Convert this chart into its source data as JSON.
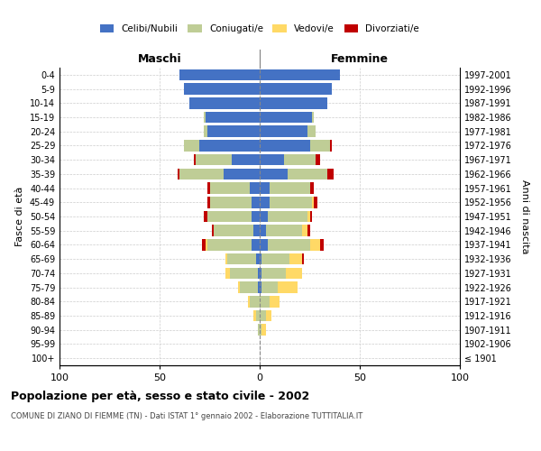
{
  "age_groups": [
    "100+",
    "95-99",
    "90-94",
    "85-89",
    "80-84",
    "75-79",
    "70-74",
    "65-69",
    "60-64",
    "55-59",
    "50-54",
    "45-49",
    "40-44",
    "35-39",
    "30-34",
    "25-29",
    "20-24",
    "15-19",
    "10-14",
    "5-9",
    "0-4"
  ],
  "birth_years": [
    "≤ 1901",
    "1902-1906",
    "1907-1911",
    "1912-1916",
    "1917-1921",
    "1922-1926",
    "1927-1931",
    "1932-1936",
    "1937-1941",
    "1942-1946",
    "1947-1951",
    "1952-1956",
    "1957-1961",
    "1962-1966",
    "1967-1971",
    "1972-1976",
    "1977-1981",
    "1982-1986",
    "1987-1991",
    "1992-1996",
    "1997-2001"
  ],
  "male": {
    "celibi": [
      0,
      0,
      0,
      0,
      0,
      1,
      1,
      2,
      4,
      3,
      4,
      4,
      5,
      18,
      14,
      30,
      26,
      27,
      35,
      38,
      40
    ],
    "coniugati": [
      0,
      0,
      1,
      2,
      5,
      9,
      14,
      14,
      22,
      20,
      22,
      21,
      20,
      22,
      18,
      8,
      2,
      1,
      0,
      0,
      0
    ],
    "vedovi": [
      0,
      0,
      0,
      1,
      1,
      1,
      2,
      1,
      1,
      0,
      0,
      0,
      0,
      0,
      0,
      0,
      0,
      0,
      0,
      0,
      0
    ],
    "divorziati": [
      0,
      0,
      0,
      0,
      0,
      0,
      0,
      0,
      2,
      1,
      2,
      1,
      1,
      1,
      1,
      0,
      0,
      0,
      0,
      0,
      0
    ]
  },
  "female": {
    "nubili": [
      0,
      0,
      0,
      0,
      0,
      1,
      1,
      1,
      4,
      3,
      4,
      5,
      5,
      14,
      12,
      25,
      24,
      26,
      34,
      36,
      40
    ],
    "coniugate": [
      0,
      0,
      1,
      3,
      5,
      8,
      12,
      14,
      21,
      18,
      20,
      21,
      20,
      20,
      16,
      10,
      4,
      1,
      0,
      0,
      0
    ],
    "vedove": [
      0,
      0,
      2,
      3,
      5,
      10,
      8,
      6,
      5,
      3,
      1,
      1,
      0,
      0,
      0,
      0,
      0,
      0,
      0,
      0,
      0
    ],
    "divorziate": [
      0,
      0,
      0,
      0,
      0,
      0,
      0,
      1,
      2,
      1,
      1,
      2,
      2,
      3,
      2,
      1,
      0,
      0,
      0,
      0,
      0
    ]
  },
  "colors": {
    "celibi": "#4472C4",
    "coniugati": "#BFCD96",
    "vedovi": "#FFD966",
    "divorziati": "#C00000"
  },
  "xlim": [
    -100,
    100
  ],
  "xticks": [
    -100,
    -50,
    0,
    50,
    100
  ],
  "xticklabels": [
    "100",
    "50",
    "0",
    "50",
    "100"
  ],
  "title": "Popolazione per età, sesso e stato civile - 2002",
  "subtitle": "COMUNE DI ZIANO DI FIEMME (TN) - Dati ISTAT 1° gennaio 2002 - Elaborazione TUTTITALIA.IT",
  "ylabel": "Fasce di età",
  "ylabel_right": "Anni di nascita",
  "maschi_label": "Maschi",
  "femmine_label": "Femmine",
  "background_color": "#ffffff",
  "grid_color": "#cccccc"
}
